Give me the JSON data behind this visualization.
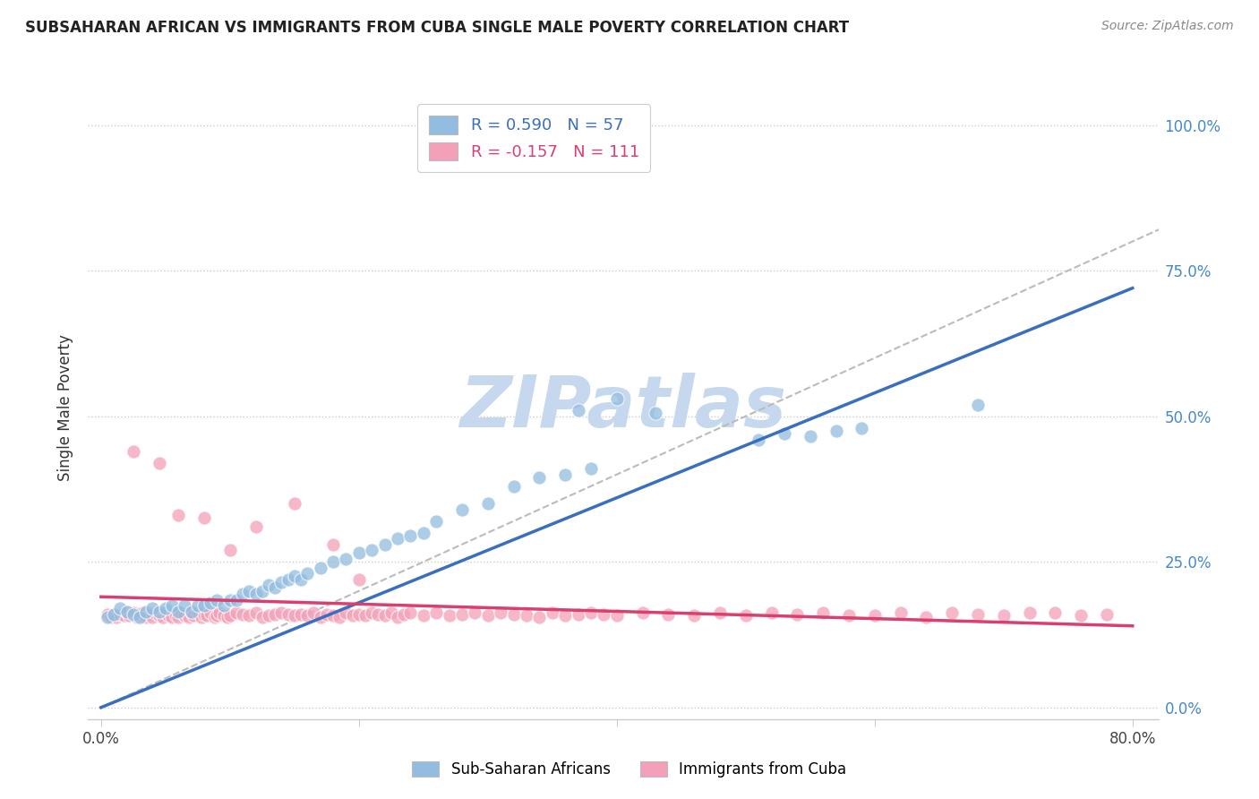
{
  "title": "SUBSAHARAN AFRICAN VS IMMIGRANTS FROM CUBA SINGLE MALE POVERTY CORRELATION CHART",
  "source": "Source: ZipAtlas.com",
  "ylabel": "Single Male Poverty",
  "yticks": [
    "0.0%",
    "25.0%",
    "50.0%",
    "75.0%",
    "100.0%"
  ],
  "ytick_vals": [
    0.0,
    0.25,
    0.5,
    0.75,
    1.0
  ],
  "xlim": [
    -0.01,
    0.82
  ],
  "ylim": [
    -0.02,
    1.05
  ],
  "legend_label1": "Sub-Saharan Africans",
  "legend_label2": "Immigrants from Cuba",
  "blue_color": "#92bde0",
  "pink_color": "#f4a0b8",
  "trendline_blue_color": "#3a6fbf",
  "trendline_pink_color": "#d94070",
  "diagonal_color": "#bbbbbb",
  "watermark_color": "#c5d8ee",
  "watermark_text": "ZIPatlas",
  "blue_scatter_x": [
    0.005,
    0.01,
    0.015,
    0.02,
    0.025,
    0.03,
    0.035,
    0.04,
    0.045,
    0.05,
    0.055,
    0.06,
    0.065,
    0.07,
    0.075,
    0.08,
    0.085,
    0.09,
    0.095,
    0.1,
    0.105,
    0.11,
    0.115,
    0.12,
    0.125,
    0.13,
    0.135,
    0.14,
    0.145,
    0.15,
    0.155,
    0.16,
    0.17,
    0.18,
    0.19,
    0.2,
    0.21,
    0.22,
    0.23,
    0.24,
    0.25,
    0.26,
    0.28,
    0.3,
    0.32,
    0.34,
    0.36,
    0.38,
    0.51,
    0.53,
    0.55,
    0.57,
    0.59,
    0.68,
    0.37,
    0.4,
    0.43
  ],
  "blue_scatter_y": [
    0.155,
    0.16,
    0.17,
    0.165,
    0.16,
    0.155,
    0.165,
    0.17,
    0.165,
    0.17,
    0.175,
    0.165,
    0.175,
    0.165,
    0.175,
    0.175,
    0.18,
    0.185,
    0.175,
    0.185,
    0.185,
    0.195,
    0.2,
    0.195,
    0.2,
    0.21,
    0.205,
    0.215,
    0.22,
    0.225,
    0.22,
    0.23,
    0.24,
    0.25,
    0.255,
    0.265,
    0.27,
    0.28,
    0.29,
    0.295,
    0.3,
    0.32,
    0.34,
    0.35,
    0.38,
    0.395,
    0.4,
    0.41,
    0.46,
    0.47,
    0.465,
    0.475,
    0.48,
    0.52,
    0.51,
    0.53,
    0.505
  ],
  "pink_scatter_x": [
    0.005,
    0.008,
    0.01,
    0.012,
    0.015,
    0.018,
    0.02,
    0.022,
    0.025,
    0.028,
    0.03,
    0.032,
    0.035,
    0.038,
    0.04,
    0.042,
    0.045,
    0.048,
    0.05,
    0.052,
    0.055,
    0.058,
    0.06,
    0.062,
    0.065,
    0.068,
    0.07,
    0.072,
    0.075,
    0.078,
    0.08,
    0.082,
    0.085,
    0.088,
    0.09,
    0.092,
    0.095,
    0.098,
    0.1,
    0.105,
    0.11,
    0.115,
    0.12,
    0.125,
    0.13,
    0.135,
    0.14,
    0.145,
    0.15,
    0.155,
    0.16,
    0.165,
    0.17,
    0.175,
    0.18,
    0.185,
    0.19,
    0.195,
    0.2,
    0.205,
    0.21,
    0.215,
    0.22,
    0.225,
    0.23,
    0.235,
    0.24,
    0.25,
    0.26,
    0.27,
    0.28,
    0.29,
    0.3,
    0.31,
    0.32,
    0.33,
    0.34,
    0.35,
    0.36,
    0.37,
    0.38,
    0.39,
    0.4,
    0.42,
    0.44,
    0.46,
    0.48,
    0.5,
    0.52,
    0.54,
    0.56,
    0.58,
    0.6,
    0.62,
    0.64,
    0.66,
    0.68,
    0.7,
    0.72,
    0.74,
    0.76,
    0.78,
    0.025,
    0.045,
    0.06,
    0.08,
    0.1,
    0.12,
    0.15,
    0.18,
    0.2
  ],
  "pink_scatter_y": [
    0.16,
    0.155,
    0.16,
    0.155,
    0.16,
    0.158,
    0.162,
    0.158,
    0.162,
    0.155,
    0.158,
    0.162,
    0.155,
    0.16,
    0.155,
    0.162,
    0.158,
    0.155,
    0.162,
    0.158,
    0.155,
    0.16,
    0.155,
    0.162,
    0.158,
    0.155,
    0.162,
    0.158,
    0.162,
    0.155,
    0.16,
    0.158,
    0.162,
    0.155,
    0.158,
    0.162,
    0.158,
    0.155,
    0.158,
    0.162,
    0.16,
    0.158,
    0.162,
    0.155,
    0.158,
    0.16,
    0.162,
    0.16,
    0.158,
    0.16,
    0.158,
    0.162,
    0.155,
    0.16,
    0.158,
    0.155,
    0.162,
    0.158,
    0.16,
    0.158,
    0.162,
    0.16,
    0.158,
    0.162,
    0.155,
    0.16,
    0.162,
    0.158,
    0.162,
    0.158,
    0.16,
    0.162,
    0.158,
    0.162,
    0.16,
    0.158,
    0.155,
    0.162,
    0.158,
    0.16,
    0.162,
    0.16,
    0.158,
    0.162,
    0.16,
    0.158,
    0.162,
    0.158,
    0.162,
    0.16,
    0.162,
    0.158,
    0.158,
    0.162,
    0.155,
    0.162,
    0.16,
    0.158,
    0.162,
    0.162,
    0.158,
    0.16,
    0.44,
    0.42,
    0.33,
    0.325,
    0.27,
    0.31,
    0.35,
    0.28,
    0.22
  ],
  "blue_trendline_x0": 0.0,
  "blue_trendline_y0": 0.0,
  "blue_trendline_x1": 0.8,
  "blue_trendline_y1": 0.72,
  "pink_trendline_x0": 0.0,
  "pink_trendline_y0": 0.19,
  "pink_trendline_x1": 0.8,
  "pink_trendline_y1": 0.14
}
